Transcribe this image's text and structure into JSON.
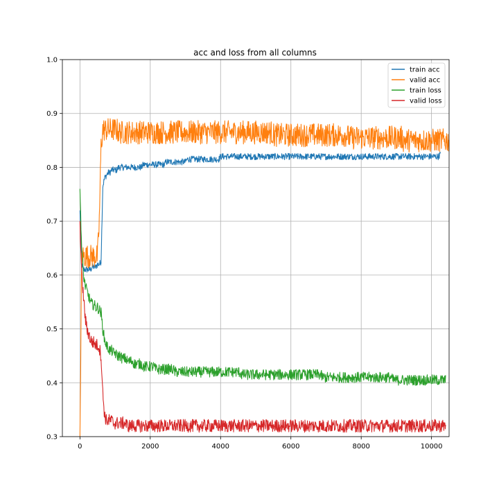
{
  "chart_data": {
    "type": "line",
    "title": "acc and loss from all columns",
    "xlabel": "",
    "ylabel": "",
    "xlim": [
      -500,
      10500
    ],
    "ylim": [
      0.3,
      1.0
    ],
    "xticks": [
      0,
      2000,
      4000,
      6000,
      8000,
      10000
    ],
    "xtick_labels": [
      "0",
      "2000",
      "4000",
      "6000",
      "8000",
      "10000"
    ],
    "yticks": [
      0.3,
      0.4,
      0.5,
      0.6,
      0.7,
      0.8,
      0.9,
      1.0
    ],
    "ytick_labels": [
      "0.3",
      "0.4",
      "0.5",
      "0.6",
      "0.7",
      "0.8",
      "0.9",
      "1.0"
    ],
    "grid": true,
    "legend_position": "top-right",
    "x_step": 50,
    "series": [
      {
        "name": "train acc",
        "color": "#1f77b4",
        "noise": 0.006,
        "values": [
          0.72,
          0.62,
          0.61,
          0.61,
          0.61,
          0.61,
          0.61,
          0.615,
          0.615,
          0.615,
          0.62,
          0.62,
          0.625,
          0.765,
          0.78,
          0.785,
          0.79,
          0.79,
          0.795,
          0.795,
          0.795,
          0.795,
          0.8,
          0.8,
          0.8,
          0.8,
          0.8,
          0.8,
          0.8,
          0.8,
          0.8,
          0.8,
          0.8,
          0.8,
          0.8,
          0.8,
          0.805,
          0.805,
          0.805,
          0.805,
          0.805,
          0.805,
          0.805,
          0.805,
          0.805,
          0.805,
          0.805,
          0.805,
          0.805,
          0.81,
          0.81,
          0.81,
          0.81,
          0.81,
          0.81,
          0.81,
          0.81,
          0.81,
          0.81,
          0.81,
          0.81,
          0.815,
          0.815,
          0.815,
          0.815,
          0.815,
          0.815,
          0.815,
          0.815,
          0.815,
          0.815,
          0.815,
          0.815,
          0.815,
          0.815,
          0.815,
          0.815,
          0.815,
          0.815,
          0.815,
          0.82,
          0.82,
          0.82,
          0.82,
          0.82,
          0.82,
          0.82,
          0.82,
          0.82,
          0.82,
          0.82,
          0.82,
          0.82,
          0.82,
          0.82,
          0.82,
          0.82,
          0.82,
          0.82,
          0.82,
          0.82,
          0.82,
          0.82,
          0.82,
          0.82,
          0.82,
          0.82,
          0.82,
          0.82,
          0.82,
          0.82,
          0.82,
          0.82,
          0.82,
          0.82,
          0.82,
          0.82,
          0.82,
          0.82,
          0.82,
          0.82,
          0.82,
          0.82,
          0.82,
          0.82,
          0.82,
          0.82,
          0.82,
          0.82,
          0.82,
          0.82,
          0.82,
          0.82,
          0.82,
          0.82,
          0.82,
          0.82,
          0.82,
          0.82,
          0.82,
          0.82,
          0.82,
          0.82,
          0.82,
          0.82,
          0.82,
          0.82,
          0.82,
          0.82,
          0.82,
          0.82,
          0.82,
          0.82,
          0.82,
          0.82,
          0.82,
          0.82,
          0.82,
          0.82,
          0.82,
          0.82,
          0.82,
          0.82,
          0.82,
          0.82,
          0.82,
          0.82,
          0.82,
          0.82,
          0.82,
          0.82,
          0.82,
          0.82,
          0.82,
          0.82,
          0.82,
          0.82,
          0.82,
          0.82,
          0.82,
          0.82,
          0.82,
          0.82,
          0.82,
          0.82,
          0.82,
          0.82,
          0.82,
          0.82,
          0.82,
          0.82,
          0.82,
          0.82,
          0.82,
          0.82,
          0.82,
          0.82,
          0.82,
          0.82,
          0.82,
          0.82,
          0.82,
          0.82,
          0.82,
          0.82,
          0.825
        ]
      },
      {
        "name": "valid acc",
        "color": "#ff7f0e",
        "noise": 0.022,
        "values": [
          0.3,
          0.635,
          0.635,
          0.635,
          0.635,
          0.635,
          0.635,
          0.635,
          0.635,
          0.635,
          0.635,
          0.7,
          0.84,
          0.87,
          0.87,
          0.87,
          0.87,
          0.87,
          0.87,
          0.87,
          0.87,
          0.87,
          0.865,
          0.865,
          0.865,
          0.865,
          0.865,
          0.865,
          0.865,
          0.865,
          0.865,
          0.865,
          0.865,
          0.865,
          0.865,
          0.865,
          0.865,
          0.865,
          0.865,
          0.865,
          0.865,
          0.865,
          0.865,
          0.865,
          0.865,
          0.865,
          0.865,
          0.865,
          0.865,
          0.865,
          0.865,
          0.865,
          0.865,
          0.865,
          0.865,
          0.865,
          0.865,
          0.865,
          0.865,
          0.865,
          0.865,
          0.865,
          0.865,
          0.865,
          0.865,
          0.865,
          0.865,
          0.865,
          0.865,
          0.865,
          0.865,
          0.865,
          0.865,
          0.865,
          0.865,
          0.865,
          0.865,
          0.865,
          0.865,
          0.865,
          0.865,
          0.865,
          0.865,
          0.865,
          0.865,
          0.865,
          0.865,
          0.865,
          0.865,
          0.865,
          0.865,
          0.865,
          0.865,
          0.865,
          0.865,
          0.865,
          0.865,
          0.865,
          0.865,
          0.865,
          0.865,
          0.865,
          0.865,
          0.865,
          0.865,
          0.865,
          0.865,
          0.865,
          0.865,
          0.865,
          0.86,
          0.86,
          0.86,
          0.86,
          0.86,
          0.86,
          0.86,
          0.86,
          0.86,
          0.86,
          0.86,
          0.86,
          0.86,
          0.86,
          0.86,
          0.86,
          0.86,
          0.86,
          0.86,
          0.86,
          0.86,
          0.86,
          0.86,
          0.86,
          0.86,
          0.86,
          0.86,
          0.86,
          0.86,
          0.86,
          0.86,
          0.86,
          0.86,
          0.86,
          0.86,
          0.86,
          0.86,
          0.86,
          0.86,
          0.86,
          0.86,
          0.86,
          0.86,
          0.855,
          0.855,
          0.855,
          0.855,
          0.855,
          0.855,
          0.855,
          0.855,
          0.855,
          0.855,
          0.855,
          0.855,
          0.855,
          0.855,
          0.855,
          0.855,
          0.855,
          0.855,
          0.855,
          0.855,
          0.855,
          0.855,
          0.855,
          0.855,
          0.855,
          0.855,
          0.855,
          0.855,
          0.855,
          0.855,
          0.855,
          0.85,
          0.85,
          0.85,
          0.85,
          0.85,
          0.85,
          0.85,
          0.85,
          0.85,
          0.85,
          0.85,
          0.85,
          0.85,
          0.85,
          0.85,
          0.85,
          0.85,
          0.85,
          0.85,
          0.85,
          0.85,
          0.85,
          0.85,
          0.85,
          0.85,
          0.85,
          0.85,
          0.85,
          0.85
        ]
      },
      {
        "name": "train loss",
        "color": "#2ca02c",
        "noise": 0.01,
        "values": [
          0.76,
          0.65,
          0.6,
          0.58,
          0.57,
          0.56,
          0.55,
          0.545,
          0.545,
          0.54,
          0.54,
          0.535,
          0.53,
          0.5,
          0.48,
          0.47,
          0.465,
          0.46,
          0.46,
          0.455,
          0.455,
          0.45,
          0.45,
          0.45,
          0.445,
          0.445,
          0.445,
          0.44,
          0.44,
          0.44,
          0.44,
          0.435,
          0.435,
          0.435,
          0.435,
          0.435,
          0.43,
          0.43,
          0.43,
          0.43,
          0.43,
          0.43,
          0.43,
          0.425,
          0.425,
          0.425,
          0.425,
          0.425,
          0.425,
          0.425,
          0.425,
          0.425,
          0.425,
          0.425,
          0.42,
          0.42,
          0.42,
          0.42,
          0.42,
          0.42,
          0.42,
          0.42,
          0.42,
          0.42,
          0.42,
          0.42,
          0.42,
          0.42,
          0.42,
          0.42,
          0.42,
          0.42,
          0.42,
          0.42,
          0.42,
          0.42,
          0.42,
          0.42,
          0.42,
          0.42,
          0.42,
          0.42,
          0.42,
          0.42,
          0.42,
          0.42,
          0.42,
          0.42,
          0.42,
          0.42,
          0.42,
          0.42,
          0.415,
          0.415,
          0.415,
          0.415,
          0.415,
          0.415,
          0.415,
          0.415,
          0.415,
          0.415,
          0.415,
          0.415,
          0.415,
          0.415,
          0.415,
          0.415,
          0.415,
          0.415,
          0.415,
          0.415,
          0.415,
          0.415,
          0.415,
          0.415,
          0.415,
          0.415,
          0.415,
          0.415,
          0.415,
          0.415,
          0.415,
          0.415,
          0.415,
          0.415,
          0.415,
          0.415,
          0.415,
          0.415,
          0.415,
          0.415,
          0.415,
          0.415,
          0.415,
          0.415,
          0.415,
          0.415,
          0.41,
          0.41,
          0.41,
          0.41,
          0.41,
          0.41,
          0.41,
          0.41,
          0.41,
          0.41,
          0.41,
          0.41,
          0.41,
          0.41,
          0.41,
          0.41,
          0.41,
          0.41,
          0.41,
          0.41,
          0.41,
          0.41,
          0.41,
          0.41,
          0.41,
          0.41,
          0.41,
          0.41,
          0.41,
          0.41,
          0.41,
          0.41,
          0.41,
          0.41,
          0.41,
          0.41,
          0.41,
          0.41,
          0.41,
          0.41,
          0.405,
          0.405,
          0.405,
          0.405,
          0.405,
          0.405,
          0.405,
          0.405,
          0.405,
          0.405,
          0.405,
          0.405,
          0.405,
          0.405,
          0.405,
          0.405,
          0.405,
          0.405,
          0.405,
          0.405,
          0.405,
          0.405,
          0.405,
          0.405,
          0.405,
          0.405,
          0.405,
          0.405,
          0.405,
          0.405,
          0.405
        ]
      },
      {
        "name": "valid loss",
        "color": "#d62728",
        "noise": 0.012,
        "values": [
          0.7,
          0.6,
          0.56,
          0.52,
          0.5,
          0.49,
          0.48,
          0.475,
          0.475,
          0.47,
          0.47,
          0.465,
          0.45,
          0.38,
          0.34,
          0.33,
          0.33,
          0.33,
          0.33,
          0.325,
          0.325,
          0.325,
          0.325,
          0.325,
          0.325,
          0.325,
          0.325,
          0.32,
          0.32,
          0.32,
          0.32,
          0.32,
          0.32,
          0.32,
          0.32,
          0.32,
          0.32,
          0.32,
          0.32,
          0.32,
          0.32,
          0.32,
          0.32,
          0.32,
          0.32,
          0.32,
          0.32,
          0.32,
          0.32,
          0.32,
          0.32,
          0.32,
          0.32,
          0.32,
          0.32,
          0.32,
          0.32,
          0.32,
          0.32,
          0.32,
          0.32,
          0.32,
          0.32,
          0.32,
          0.32,
          0.32,
          0.32,
          0.32,
          0.32,
          0.32,
          0.32,
          0.32,
          0.32,
          0.32,
          0.32,
          0.32,
          0.32,
          0.32,
          0.32,
          0.32,
          0.32,
          0.32,
          0.32,
          0.32,
          0.32,
          0.32,
          0.32,
          0.32,
          0.32,
          0.32,
          0.32,
          0.32,
          0.32,
          0.32,
          0.32,
          0.32,
          0.32,
          0.32,
          0.32,
          0.32,
          0.32,
          0.32,
          0.32,
          0.32,
          0.32,
          0.32,
          0.32,
          0.32,
          0.32,
          0.32,
          0.32,
          0.32,
          0.32,
          0.32,
          0.32,
          0.32,
          0.32,
          0.32,
          0.32,
          0.32,
          0.32,
          0.32,
          0.32,
          0.32,
          0.32,
          0.32,
          0.32,
          0.32,
          0.32,
          0.32,
          0.32,
          0.32,
          0.32,
          0.32,
          0.32,
          0.32,
          0.32,
          0.32,
          0.32,
          0.32,
          0.32,
          0.32,
          0.32,
          0.32,
          0.32,
          0.32,
          0.32,
          0.32,
          0.32,
          0.32,
          0.32,
          0.32,
          0.32,
          0.32,
          0.32,
          0.32,
          0.32,
          0.32,
          0.32,
          0.32,
          0.32,
          0.32,
          0.32,
          0.32,
          0.32,
          0.32,
          0.32,
          0.32,
          0.32,
          0.32,
          0.32,
          0.32,
          0.32,
          0.32,
          0.32,
          0.32,
          0.32,
          0.32,
          0.32,
          0.32,
          0.32,
          0.32,
          0.32,
          0.32,
          0.32,
          0.32,
          0.32,
          0.32,
          0.32,
          0.32,
          0.32,
          0.32,
          0.32,
          0.32,
          0.32,
          0.32,
          0.32,
          0.32,
          0.32,
          0.32,
          0.32,
          0.32,
          0.32,
          0.32,
          0.32,
          0.32,
          0.32,
          0.32,
          0.32
        ]
      }
    ]
  }
}
